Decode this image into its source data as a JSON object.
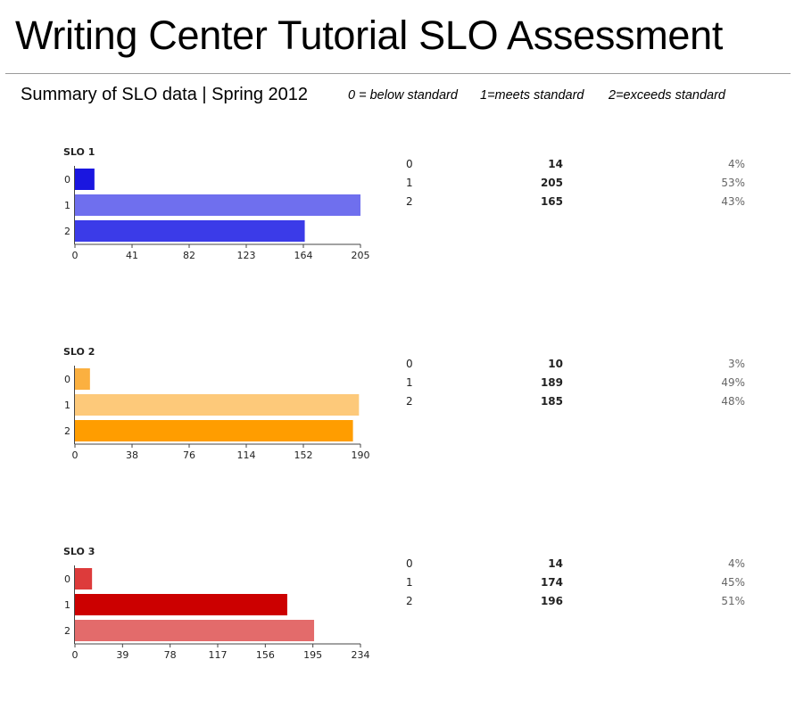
{
  "title": "Writing Center Tutorial SLO Assessment",
  "summary": "Summary of SLO data | Spring 2012",
  "legend": [
    "0 = below standard",
    "1=meets standard",
    "2=exceeds standard"
  ],
  "chart_data": [
    {
      "type": "bar",
      "orientation": "horizontal",
      "title": "SLO 1",
      "categories": [
        "0",
        "1",
        "2"
      ],
      "values": [
        14,
        205,
        165
      ],
      "colors": [
        "#1a16e0",
        "#6f6fee",
        "#3b3be8"
      ],
      "xlim": [
        0,
        205
      ],
      "xticks": [
        "0",
        "41",
        "82",
        "123",
        "164",
        "205"
      ],
      "table": [
        {
          "label": "0",
          "count": "14",
          "pct": "4%"
        },
        {
          "label": "1",
          "count": "205",
          "pct": "53%"
        },
        {
          "label": "2",
          "count": "165",
          "pct": "43%"
        }
      ]
    },
    {
      "type": "bar",
      "orientation": "horizontal",
      "title": "SLO 2",
      "categories": [
        "0",
        "1",
        "2"
      ],
      "values": [
        10,
        189,
        185
      ],
      "colors": [
        "#fbb040",
        "#fdc97a",
        "#ff9d00"
      ],
      "xlim": [
        0,
        190
      ],
      "xticks": [
        "0",
        "38",
        "76",
        "114",
        "152",
        "190"
      ],
      "table": [
        {
          "label": "0",
          "count": "10",
          "pct": "3%"
        },
        {
          "label": "1",
          "count": "189",
          "pct": "49%"
        },
        {
          "label": "2",
          "count": "185",
          "pct": "48%"
        }
      ]
    },
    {
      "type": "bar",
      "orientation": "horizontal",
      "title": "SLO 3",
      "categories": [
        "0",
        "1",
        "2"
      ],
      "values": [
        14,
        174,
        196
      ],
      "colors": [
        "#dd3b3b",
        "#cc0000",
        "#e36b6b"
      ],
      "xlim": [
        0,
        234
      ],
      "xticks": [
        "0",
        "39",
        "78",
        "117",
        "156",
        "195",
        "234"
      ],
      "table": [
        {
          "label": "0",
          "count": "14",
          "pct": "4%"
        },
        {
          "label": "1",
          "count": "174",
          "pct": "45%"
        },
        {
          "label": "2",
          "count": "196",
          "pct": "51%"
        }
      ]
    }
  ]
}
